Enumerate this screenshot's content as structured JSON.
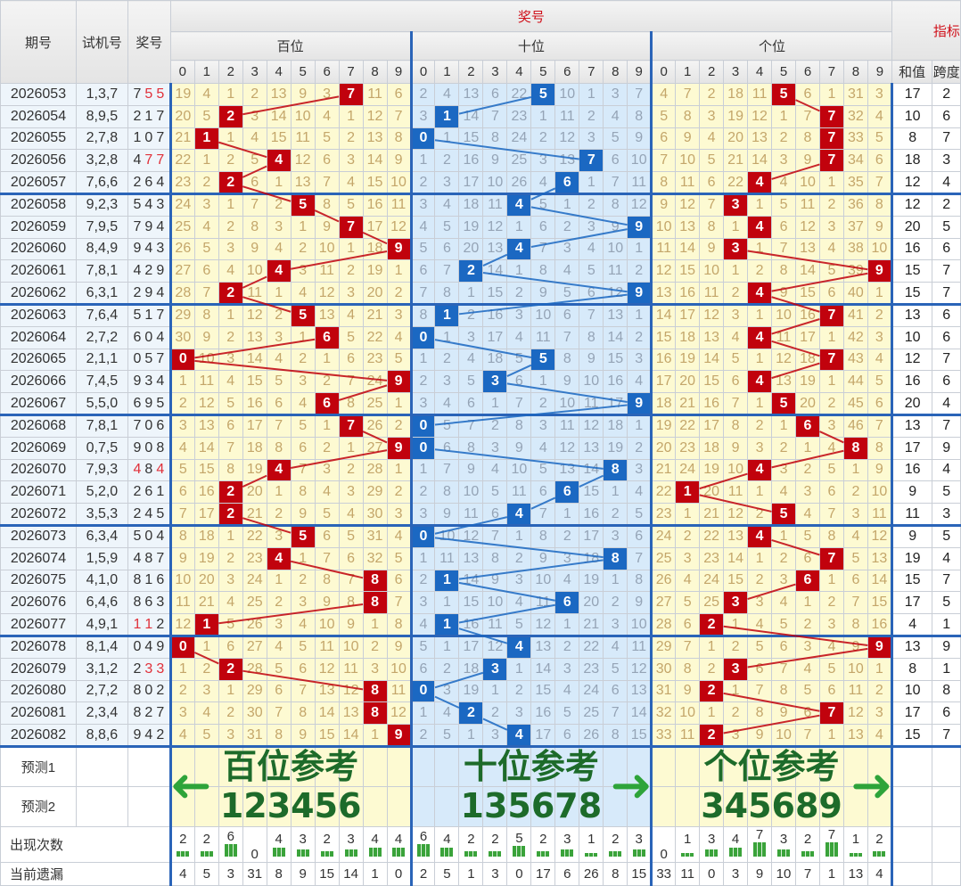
{
  "header": {
    "period": "期号",
    "trial": "试机号",
    "prize": "奖号",
    "top": "奖号",
    "hundreds": "百位",
    "tens": "十位",
    "units": "个位",
    "index": "指标",
    "sum": "和值",
    "span": "跨度",
    "digits": [
      "0",
      "1",
      "2",
      "3",
      "4",
      "5",
      "6",
      "7",
      "8",
      "9"
    ]
  },
  "rows": [
    {
      "period": "2026053",
      "trial": "1,3,7",
      "prize": "755",
      "h": "19 4 1 2 13 9 3 7 11 6",
      "t": "2 4 13 6 22 5 10 1 3 7",
      "u": "4 7 2 18 11 5 6 1 31 3",
      "sum": "17",
      "span": "2"
    },
    {
      "period": "2026054",
      "trial": "8,9,5",
      "prize": "217",
      "h": "20 5 2 3 14 10 4 1 12 7",
      "t": "3 1 14 7 23 1 11 2 4 8",
      "u": "5 8 3 19 12 1 7 7 32 4",
      "sum": "10",
      "span": "6"
    },
    {
      "period": "2026055",
      "trial": "2,7,8",
      "prize": "107",
      "h": "21 1 1 4 15 11 5 2 13 8",
      "t": "0 1 15 8 24 2 12 3 5 9",
      "u": "6 9 4 20 13 2 8 7 33 5",
      "sum": "8",
      "span": "7"
    },
    {
      "period": "2026056",
      "trial": "3,2,8",
      "prize": "477",
      "h": "22 1 2 5 4 12 6 3 14 9",
      "t": "1 2 16 9 25 3 13 7 6 10",
      "u": "7 10 5 21 14 3 9 7 34 6",
      "sum": "18",
      "span": "3"
    },
    {
      "period": "2026057",
      "trial": "7,6,6",
      "prize": "264",
      "h": "23 2 2 6 1 13 7 4 15 10",
      "t": "2 3 17 10 26 4 6 1 7 11",
      "u": "8 11 6 22 4 4 10 1 35 7",
      "sum": "12",
      "span": "4"
    },
    {
      "period": "2026058",
      "trial": "9,2,3",
      "prize": "543",
      "h": "24 3 1 7 2 5 8 5 16 11",
      "t": "3 4 18 11 4 5 1 2 8 12",
      "u": "9 12 7 3 1 5 11 2 36 8",
      "sum": "12",
      "span": "2"
    },
    {
      "period": "2026059",
      "trial": "7,9,5",
      "prize": "794",
      "h": "25 4 2 8 3 1 9 7 17 12",
      "t": "4 5 19 12 1 6 2 3 9 9",
      "u": "10 13 8 1 4 6 12 3 37 9",
      "sum": "20",
      "span": "5"
    },
    {
      "period": "2026060",
      "trial": "8,4,9",
      "prize": "943",
      "h": "26 5 3 9 4 2 10 1 18 9",
      "t": "5 6 20 13 4 7 3 4 10 1",
      "u": "11 14 9 3 1 7 13 4 38 10",
      "sum": "16",
      "span": "6"
    },
    {
      "period": "2026061",
      "trial": "7,8,1",
      "prize": "429",
      "h": "27 6 4 10 4 3 11 2 19 1",
      "t": "6 7 2 14 1 8 4 5 11 2",
      "u": "12 15 10 1 2 8 14 5 39 9",
      "sum": "15",
      "span": "7"
    },
    {
      "period": "2026062",
      "trial": "6,3,1",
      "prize": "294",
      "h": "28 7 2 11 1 4 12 3 20 2",
      "t": "7 8 1 15 2 9 5 6 12 9",
      "u": "13 16 11 2 4 9 15 6 40 1",
      "sum": "15",
      "span": "7"
    },
    {
      "period": "2026063",
      "trial": "7,6,4",
      "prize": "517",
      "h": "29 8 1 12 2 5 13 4 21 3",
      "t": "8 1 2 16 3 10 6 7 13 1",
      "u": "14 17 12 3 1 10 16 7 41 2",
      "sum": "13",
      "span": "6"
    },
    {
      "period": "2026064",
      "trial": "2,7,2",
      "prize": "604",
      "h": "30 9 2 13 3 1 6 5 22 4",
      "t": "0 1 3 17 4 11 7 8 14 2",
      "u": "15 18 13 4 4 11 17 1 42 3",
      "sum": "10",
      "span": "6"
    },
    {
      "period": "2026065",
      "trial": "2,1,1",
      "prize": "057",
      "h": "0 10 3 14 4 2 1 6 23 5",
      "t": "1 2 4 18 5 5 8 9 15 3",
      "u": "16 19 14 5 1 12 18 7 43 4",
      "sum": "12",
      "span": "7"
    },
    {
      "period": "2026066",
      "trial": "7,4,5",
      "prize": "934",
      "h": "1 11 4 15 5 3 2 7 24 9",
      "t": "2 3 5 3 6 1 9 10 16 4",
      "u": "17 20 15 6 4 13 19 1 44 5",
      "sum": "16",
      "span": "6"
    },
    {
      "period": "2026067",
      "trial": "5,5,0",
      "prize": "695",
      "h": "2 12 5 16 6 4 6 8 25 1",
      "t": "3 4 6 1 7 2 10 11 17 9",
      "u": "18 21 16 7 1 5 20 2 45 6",
      "sum": "20",
      "span": "4"
    },
    {
      "period": "2026068",
      "trial": "7,8,1",
      "prize": "706",
      "h": "3 13 6 17 7 5 1 7 26 2",
      "t": "0 5 7 2 8 3 11 12 18 1",
      "u": "19 22 17 8 2 1 6 3 46 7",
      "sum": "13",
      "span": "7"
    },
    {
      "period": "2026069",
      "trial": "0,7,5",
      "prize": "908",
      "h": "4 14 7 18 8 6 2 1 27 9",
      "t": "0 6 8 3 9 4 12 13 19 2",
      "u": "20 23 18 9 3 2 1 4 8 8",
      "sum": "17",
      "span": "9"
    },
    {
      "period": "2026070",
      "trial": "7,9,3",
      "prize": "484",
      "h": "5 15 8 19 4 7 3 2 28 1",
      "t": "1 7 9 4 10 5 13 14 8 3",
      "u": "21 24 19 10 4 3 2 5 1 9",
      "sum": "16",
      "span": "4"
    },
    {
      "period": "2026071",
      "trial": "5,2,0",
      "prize": "261",
      "h": "6 16 2 20 1 8 4 3 29 2",
      "t": "2 8 10 5 11 6 6 15 1 4",
      "u": "22 1 20 11 1 4 3 6 2 10",
      "sum": "9",
      "span": "5"
    },
    {
      "period": "2026072",
      "trial": "3,5,3",
      "prize": "245",
      "h": "7 17 2 21 2 9 5 4 30 3",
      "t": "3 9 11 6 4 7 1 16 2 5",
      "u": "23 1 21 12 2 5 4 7 3 11",
      "sum": "11",
      "span": "3"
    },
    {
      "period": "2026073",
      "trial": "6,3,4",
      "prize": "504",
      "h": "8 18 1 22 3 5 6 5 31 4",
      "t": "0 10 12 7 1 8 2 17 3 6",
      "u": "24 2 22 13 4 1 5 8 4 12",
      "sum": "9",
      "span": "5"
    },
    {
      "period": "2026074",
      "trial": "1,5,9",
      "prize": "487",
      "h": "9 19 2 23 4 1 7 6 32 5",
      "t": "1 11 13 8 2 9 3 18 8 7",
      "u": "25 3 23 14 1 2 6 7 5 13",
      "sum": "19",
      "span": "4"
    },
    {
      "period": "2026075",
      "trial": "4,1,0",
      "prize": "816",
      "h": "10 20 3 24 1 2 8 7 8 6",
      "t": "2 1 14 9 3 10 4 19 1 8",
      "u": "26 4 24 15 2 3 6 1 6 14",
      "sum": "15",
      "span": "7"
    },
    {
      "period": "2026076",
      "trial": "6,4,6",
      "prize": "863",
      "h": "11 21 4 25 2 3 9 8 8 7",
      "t": "3 1 15 10 4 11 6 20 2 9",
      "u": "27 5 25 3 3 4 1 2 7 15",
      "sum": "17",
      "span": "5"
    },
    {
      "period": "2026077",
      "trial": "4,9,1",
      "prize": "112",
      "h": "12 1 5 26 3 4 10 9 1 8",
      "t": "4 1 16 11 5 12 1 21 3 10",
      "u": "28 6 2 1 4 5 2 3 8 16",
      "sum": "4",
      "span": "1"
    },
    {
      "period": "2026078",
      "trial": "8,1,4",
      "prize": "049",
      "h": "0 1 6 27 4 5 11 10 2 9",
      "t": "5 1 17 12 4 13 2 22 4 11",
      "u": "29 7 1 2 5 6 3 4 9 9",
      "sum": "13",
      "span": "9"
    },
    {
      "period": "2026079",
      "trial": "3,1,2",
      "prize": "233",
      "h": "1 2 2 28 5 6 12 11 3 10",
      "t": "6 2 18 3 1 14 3 23 5 12",
      "u": "30 8 2 3 6 7 4 5 10 1",
      "sum": "8",
      "span": "1"
    },
    {
      "period": "2026080",
      "trial": "2,7,2",
      "prize": "802",
      "h": "2 3 1 29 6 7 13 12 8 11",
      "t": "0 3 19 1 2 15 4 24 6 13",
      "u": "31 9 2 1 7 8 5 6 11 2",
      "sum": "10",
      "span": "8"
    },
    {
      "period": "2026081",
      "trial": "2,3,4",
      "prize": "827",
      "h": "3 4 2 30 7 8 14 13 8 12",
      "t": "1 4 2 2 3 16 5 25 7 14",
      "u": "32 10 1 2 8 9 6 7 12 3",
      "sum": "17",
      "span": "6"
    },
    {
      "period": "2026082",
      "trial": "8,8,6",
      "prize": "942",
      "h": "4 5 3 31 8 9 15 14 1 9",
      "t": "2 5 1 3 4 17 6 26 8 15",
      "u": "33 11 2 3 9 10 7 1 13 4",
      "sum": "15",
      "span": "7"
    }
  ],
  "footer": {
    "predict1": "预测1",
    "predict2": "预测2",
    "count_label": "出现次数",
    "omit_label": "当前遗漏",
    "counts": [
      2,
      2,
      6,
      0,
      4,
      3,
      2,
      3,
      4,
      4,
      6,
      4,
      2,
      2,
      5,
      2,
      3,
      1,
      2,
      3,
      0,
      1,
      3,
      4,
      7,
      3,
      2,
      7,
      1,
      2
    ],
    "omissions": [
      4,
      5,
      3,
      31,
      8,
      9,
      15,
      14,
      1,
      0,
      2,
      5,
      1,
      3,
      0,
      17,
      6,
      26,
      8,
      15,
      33,
      11,
      0,
      3,
      9,
      10,
      7,
      1,
      13,
      4
    ]
  },
  "annotations": {
    "hundreds": {
      "title": "百位参考",
      "nums": "123456"
    },
    "tens": {
      "title": "十位参考",
      "nums": "135678"
    },
    "units": {
      "title": "个位参考",
      "nums": "345689"
    }
  },
  "colors": {
    "hit_red": "#c1020d",
    "hit_blue": "#1b68c2",
    "annotation": "#1d6b2a"
  }
}
